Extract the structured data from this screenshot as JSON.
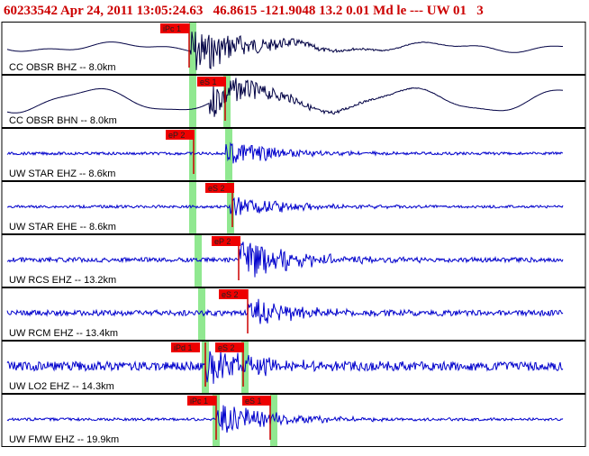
{
  "header": {
    "event_id": "60233542",
    "datetime": "Apr 24, 2011 13:05:24.63",
    "location": "46.8615 -121.9048",
    "depth": "13.2",
    "magnitude": "0.01 Md",
    "type": "le ---",
    "network": "UW 01",
    "page": "3"
  },
  "colors": {
    "short_period": "#000044",
    "broadband": "#0000cc",
    "pick_box": "#ee0000",
    "pick_line": "#cc0000",
    "window": "#90e890"
  },
  "traces": [
    {
      "label": "CC OBSR BHZ -- 8.0km",
      "picks": [
        {
          "text": "iPc 1"
        }
      ],
      "windows": 1
    },
    {
      "label": "CC OBSR BHN -- 8.0km",
      "picks": [
        {
          "text": "eS 1"
        }
      ],
      "windows": 2
    },
    {
      "label": "UW STAR EHZ -- 8.6km",
      "picks": [
        {
          "text": "eP 2"
        }
      ],
      "windows": 2
    },
    {
      "label": "UW STAR EHE -- 8.6km",
      "picks": [
        {
          "text": "eS 2"
        }
      ],
      "windows": 2
    },
    {
      "label": "UW RCS EHZ -- 13.2km",
      "picks": [
        {
          "text": "eP 2"
        }
      ],
      "windows": 1
    },
    {
      "label": "UW RCM EHZ -- 13.4km",
      "picks": [
        {
          "text": "eS 2"
        }
      ],
      "windows": 1
    },
    {
      "label": "UW LO2 EHZ -- 14.3km",
      "picks": [
        {
          "text": "iPd 1"
        },
        {
          "text": "eS 2"
        }
      ],
      "windows": 2
    },
    {
      "label": "UW FMW EHZ -- 19.9km",
      "picks": [
        {
          "text": "iPc 1"
        },
        {
          "text": "eS 1"
        }
      ],
      "windows": 2
    }
  ]
}
